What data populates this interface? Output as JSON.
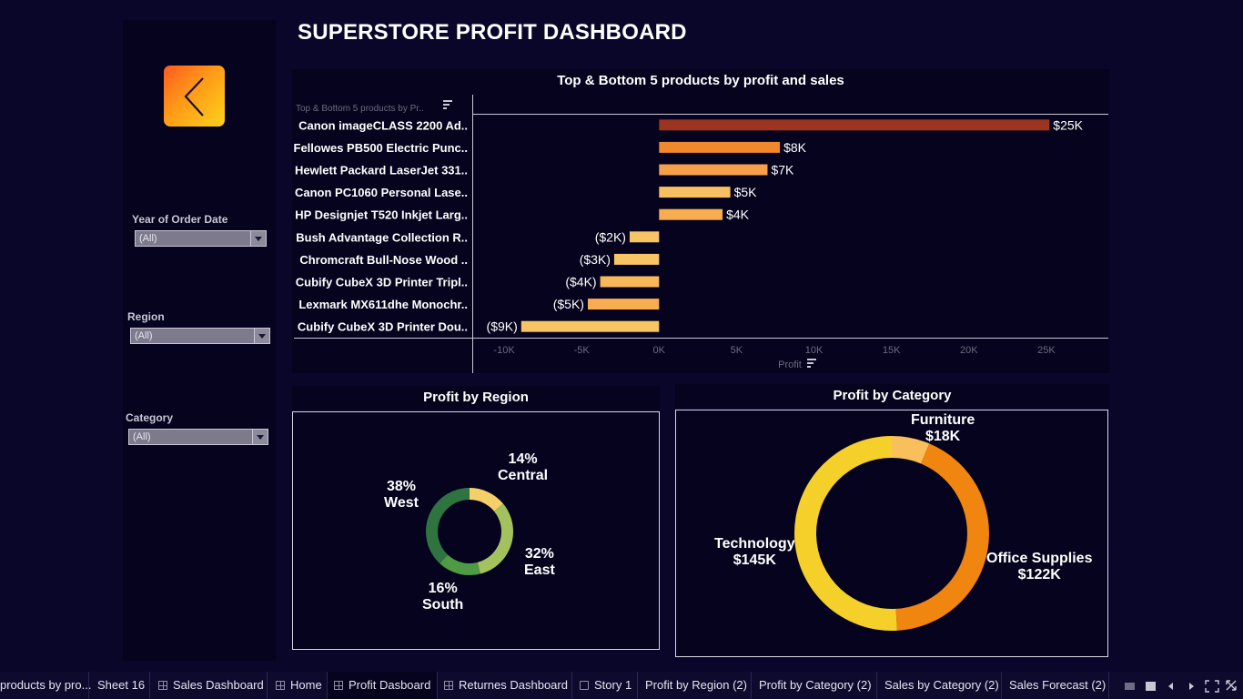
{
  "dashboard_title": "SUPERSTORE PROFIT DASHBOARD",
  "filters": [
    {
      "label": "Year of Order Date",
      "value": "(All)"
    },
    {
      "label": "Region",
      "value": "(All)"
    },
    {
      "label": "Category",
      "value": "(All)"
    }
  ],
  "icons": {
    "back": "chevron-left-icon",
    "sort": "sort-icon",
    "grid": "grid-icon"
  },
  "colors": {
    "background": "#0a0629",
    "panel": "#05031d",
    "accent_orange": "#f0850f",
    "accent_yellow": "#f5cf2a",
    "green": "#3a7a3e"
  },
  "bars_chart": {
    "title": "Top & Bottom 5 products by profit and sales",
    "header_label": "Top & Bottom 5  products by Pr..",
    "axis_label": "Profit",
    "chart_data": {
      "type": "bar",
      "orientation": "horizontal",
      "categories": [
        "Canon imageCLASS 2200 Ad..",
        "Fellowes PB500 Electric Punc..",
        "Hewlett Packard LaserJet 331..",
        "Canon PC1060 Personal Lase..",
        "HP Designjet T520 Inkjet Larg..",
        "Bush Advantage Collection R..",
        "Chromcraft Bull-Nose Wood ..",
        "Cubify CubeX 3D Printer Tripl..",
        "Lexmark MX611dhe Monochr..",
        "Cubify CubeX 3D Printer Dou.."
      ],
      "values": [
        25200,
        7800,
        7000,
        4600,
        4100,
        -1900,
        -2900,
        -3800,
        -4600,
        -8900
      ],
      "data_labels": [
        "$25K",
        "$8K",
        "$7K",
        "$5K",
        "$4K",
        "($2K)",
        "($3K)",
        "($4K)",
        "($5K)",
        "($9K)"
      ],
      "bar_colors": [
        "#9c3420",
        "#f0882c",
        "#f6a04a",
        "#f8c060",
        "#f7ad4f",
        "#f8c565",
        "#f8c565",
        "#f8b85a",
        "#f7ad50",
        "#f8c565"
      ],
      "xlim": [
        -12000,
        29000
      ],
      "ticks": [
        {
          "value": -10000,
          "label": "-10K"
        },
        {
          "value": -5000,
          "label": "-5K"
        },
        {
          "value": 0,
          "label": "0K"
        },
        {
          "value": 5000,
          "label": "5K"
        },
        {
          "value": 10000,
          "label": "10K"
        },
        {
          "value": 15000,
          "label": "15K"
        },
        {
          "value": 20000,
          "label": "20K"
        },
        {
          "value": 25000,
          "label": "25K"
        }
      ],
      "xlabel": "Profit"
    }
  },
  "region_chart": {
    "title": "Profit by Region",
    "chart_data": {
      "type": "pie",
      "donut": true,
      "slices": [
        {
          "name": "Central",
          "pct": 14,
          "label": "14%",
          "color": "#f5cf6a"
        },
        {
          "name": "East",
          "pct": 32,
          "label": "32%",
          "color": "#a3c25e"
        },
        {
          "name": "South",
          "pct": 16,
          "label": "16%",
          "color": "#4e9a45"
        },
        {
          "name": "West",
          "pct": 38,
          "label": "38%",
          "color": "#2f7440"
        }
      ]
    }
  },
  "category_chart": {
    "title": "Profit by Category",
    "chart_data": {
      "type": "pie",
      "donut": true,
      "slices": [
        {
          "name": "Furniture",
          "value": 18,
          "label": "$18K",
          "color": "#f8bf5a"
        },
        {
          "name": "Office Supplies",
          "value": 122,
          "label": "$122K",
          "color": "#f0850f"
        },
        {
          "name": "Technology",
          "value": 145,
          "label": "$145K",
          "color": "#f5cf2a"
        }
      ]
    }
  },
  "tabs": [
    {
      "label": "products by pro...",
      "icon": "none"
    },
    {
      "label": "Sheet 16",
      "icon": "none"
    },
    {
      "label": "Sales Dashboard",
      "icon": "grid"
    },
    {
      "label": "Home",
      "icon": "grid"
    },
    {
      "label": "Profit Dasboard",
      "icon": "grid",
      "active": true
    },
    {
      "label": "Returnes Dashboard",
      "icon": "grid"
    },
    {
      "label": "Story 1",
      "icon": "book"
    },
    {
      "label": "Profit by Region (2)",
      "icon": "none"
    },
    {
      "label": "Profit by Category (2)",
      "icon": "none"
    },
    {
      "label": "Sales by Category (2)",
      "icon": "none"
    },
    {
      "label": "Sales Forecast (2)",
      "icon": "none"
    }
  ],
  "nav_controls": [
    "show-sheets-icon",
    "filmstrip-icon",
    "prev-icon",
    "next-icon",
    "fit-icon",
    "fullscreen-icon"
  ]
}
